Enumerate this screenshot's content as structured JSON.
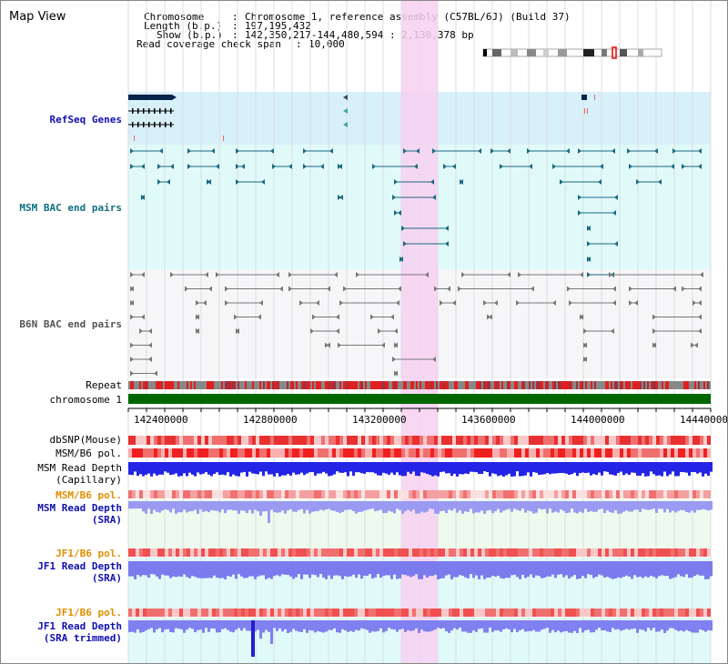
{
  "view_title": "Map View",
  "info": {
    "chromosome_label": "Chromosome",
    "chromosome_value": "Chromosome 1, reference assembly (C57BL/6J) (Build 37)",
    "length_label": "Length (b.p.)",
    "length_value": "197,195,432",
    "show_label": "Show (b.p.)",
    "show_value": "142,350,217-144,480,594 : 2,130,378 bp",
    "coverage_label": "Read coverage check span",
    "coverage_value": "10,000"
  },
  "tracks": {
    "refseq": "RefSeq Genes",
    "msm_bac": "MSM BAC end pairs",
    "b6n_bac": "B6N BAC end pairs",
    "repeat": "Repeat",
    "chromosome": "chromosome 1",
    "dbsnp": "dbSNP(Mouse)",
    "msm_b6_pol": "MSM/B6 pol.",
    "msm_depth_cap_1": "MSM Read Depth",
    "msm_depth_cap_2": "(Capillary)",
    "msm_b6_pol_2": "MSM/B6 pol.",
    "msm_depth_sra_1": "MSM Read Depth",
    "msm_depth_sra_2": "(SRA)",
    "jf1_b6_pol": "JF1/B6 pol.",
    "jf1_depth_sra_1": "JF1 Read Depth",
    "jf1_depth_sra_2": "(SRA)",
    "jf1_b6_pol_2": "JF1/B6 pol.",
    "jf1_depth_trim_1": "JF1 Read Depth",
    "jf1_depth_trim_2": "(SRA trimmed)"
  },
  "axis_ticks": [
    "142400000",
    "142800000",
    "143200000",
    "143600000",
    "144000000",
    "144400000"
  ],
  "colors": {
    "refseq_bg": "#d8f0fa",
    "msm_bg": "#e0fafa",
    "b6n_bg": "#f6f6f8",
    "highlight": "#f7d0f0",
    "chromosome_bar": "#006600",
    "depth_blue": "#2020e0",
    "depth_light": "#8888f0"
  }
}
